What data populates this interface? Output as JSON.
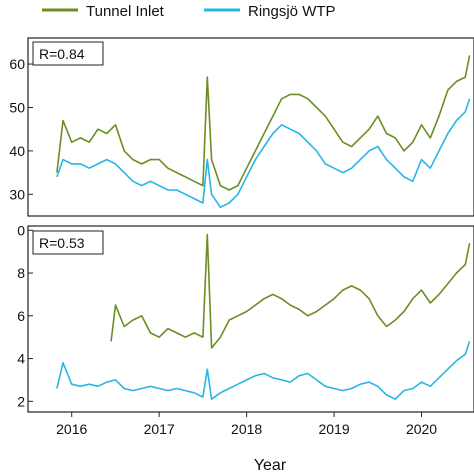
{
  "chart_data": [
    {
      "type": "line",
      "panel": "top",
      "annotation": "R=0.84",
      "xlabel": "Year",
      "ylabel": "",
      "y_ticks_visible": [
        "60",
        "50",
        "40",
        "30"
      ],
      "ylim": [
        25,
        66
      ],
      "xlim": [
        2015.5,
        2020.6
      ],
      "grid": false,
      "legend": "top, above plot",
      "series": [
        {
          "name": "Tunnel Inlet",
          "color": "#6b8e23",
          "x": [
            2015.83,
            2015.9,
            2016.0,
            2016.1,
            2016.2,
            2016.3,
            2016.4,
            2016.5,
            2016.6,
            2016.7,
            2016.8,
            2016.9,
            2017.0,
            2017.1,
            2017.2,
            2017.3,
            2017.4,
            2017.5,
            2017.55,
            2017.6,
            2017.7,
            2017.8,
            2017.9,
            2018.0,
            2018.1,
            2018.2,
            2018.3,
            2018.4,
            2018.5,
            2018.6,
            2018.7,
            2018.8,
            2018.9,
            2019.0,
            2019.1,
            2019.2,
            2019.3,
            2019.4,
            2019.5,
            2019.6,
            2019.7,
            2019.8,
            2019.9,
            2020.0,
            2020.1,
            2020.2,
            2020.3,
            2020.4,
            2020.5,
            2020.55
          ],
          "y": [
            35,
            47,
            42,
            43,
            42,
            45,
            44,
            46,
            40,
            38,
            37,
            38,
            38,
            36,
            35,
            34,
            33,
            32,
            57,
            38,
            32,
            31,
            32,
            36,
            40,
            44,
            48,
            52,
            53,
            53,
            52,
            50,
            48,
            45,
            42,
            41,
            43,
            45,
            48,
            44,
            43,
            40,
            42,
            46,
            43,
            48,
            54,
            56,
            57,
            62
          ]
        },
        {
          "name": "Ringsjö WTP",
          "color": "#29b6e6",
          "x": [
            2015.83,
            2015.9,
            2016.0,
            2016.1,
            2016.2,
            2016.3,
            2016.4,
            2016.5,
            2016.6,
            2016.7,
            2016.8,
            2016.9,
            2017.0,
            2017.1,
            2017.2,
            2017.3,
            2017.4,
            2017.5,
            2017.55,
            2017.6,
            2017.7,
            2017.8,
            2017.9,
            2018.0,
            2018.1,
            2018.2,
            2018.3,
            2018.4,
            2018.5,
            2018.6,
            2018.7,
            2018.8,
            2018.9,
            2019.0,
            2019.1,
            2019.2,
            2019.3,
            2019.4,
            2019.5,
            2019.6,
            2019.7,
            2019.8,
            2019.9,
            2020.0,
            2020.1,
            2020.2,
            2020.3,
            2020.4,
            2020.5,
            2020.55
          ],
          "y": [
            34,
            38,
            37,
            37,
            36,
            37,
            38,
            37,
            35,
            33,
            32,
            33,
            32,
            31,
            31,
            30,
            29,
            28,
            38,
            30,
            27,
            28,
            30,
            34,
            38,
            41,
            44,
            46,
            45,
            44,
            42,
            40,
            37,
            36,
            35,
            36,
            38,
            40,
            41,
            38,
            36,
            34,
            33,
            38,
            36,
            40,
            44,
            47,
            49,
            52
          ]
        }
      ]
    },
    {
      "type": "line",
      "panel": "bottom",
      "annotation": "R=0.53",
      "xlabel": "Year",
      "ylabel": "",
      "y_ticks_visible": [
        "0",
        "8",
        "6",
        "4",
        "2"
      ],
      "ylim": [
        1.5,
        10.2
      ],
      "xlim": [
        2015.5,
        2020.6
      ],
      "x_ticks": [
        "2016",
        "2017",
        "2018",
        "2019",
        "2020"
      ],
      "grid": false,
      "series": [
        {
          "name": "Tunnel Inlet",
          "color": "#6b8e23",
          "x": [
            2016.45,
            2016.5,
            2016.6,
            2016.7,
            2016.8,
            2016.9,
            2017.0,
            2017.1,
            2017.2,
            2017.3,
            2017.4,
            2017.5,
            2017.55,
            2017.6,
            2017.7,
            2017.8,
            2017.9,
            2018.0,
            2018.1,
            2018.2,
            2018.3,
            2018.4,
            2018.5,
            2018.6,
            2018.7,
            2018.8,
            2018.9,
            2019.0,
            2019.1,
            2019.2,
            2019.3,
            2019.4,
            2019.5,
            2019.6,
            2019.7,
            2019.8,
            2019.9,
            2020.0,
            2020.1,
            2020.2,
            2020.3,
            2020.4,
            2020.5,
            2020.55
          ],
          "y": [
            4.8,
            6.5,
            5.5,
            5.8,
            6.0,
            5.2,
            5.0,
            5.4,
            5.2,
            5.0,
            5.2,
            5.0,
            9.8,
            4.5,
            5.0,
            5.8,
            6.0,
            6.2,
            6.5,
            6.8,
            7.0,
            6.8,
            6.5,
            6.3,
            6.0,
            6.2,
            6.5,
            6.8,
            7.2,
            7.4,
            7.2,
            6.8,
            6.0,
            5.5,
            5.8,
            6.2,
            6.8,
            7.2,
            6.6,
            7.0,
            7.5,
            8.0,
            8.4,
            9.4
          ]
        },
        {
          "name": "Ringsjö WTP",
          "color": "#29b6e6",
          "x": [
            2015.83,
            2015.9,
            2016.0,
            2016.1,
            2016.2,
            2016.3,
            2016.4,
            2016.5,
            2016.6,
            2016.7,
            2016.8,
            2016.9,
            2017.0,
            2017.1,
            2017.2,
            2017.3,
            2017.4,
            2017.5,
            2017.55,
            2017.6,
            2017.7,
            2017.8,
            2017.9,
            2018.0,
            2018.1,
            2018.2,
            2018.3,
            2018.4,
            2018.5,
            2018.6,
            2018.7,
            2018.8,
            2018.9,
            2019.0,
            2019.1,
            2019.2,
            2019.3,
            2019.4,
            2019.5,
            2019.6,
            2019.7,
            2019.8,
            2019.9,
            2020.0,
            2020.1,
            2020.2,
            2020.3,
            2020.4,
            2020.5,
            2020.55
          ],
          "y": [
            2.6,
            3.8,
            2.8,
            2.7,
            2.8,
            2.7,
            2.9,
            3.0,
            2.6,
            2.5,
            2.6,
            2.7,
            2.6,
            2.5,
            2.6,
            2.5,
            2.4,
            2.2,
            3.5,
            2.1,
            2.4,
            2.6,
            2.8,
            3.0,
            3.2,
            3.3,
            3.1,
            3.0,
            2.9,
            3.2,
            3.3,
            3.0,
            2.7,
            2.6,
            2.5,
            2.6,
            2.8,
            2.9,
            2.7,
            2.3,
            2.1,
            2.5,
            2.6,
            2.9,
            2.7,
            3.1,
            3.5,
            3.9,
            4.2,
            4.8
          ]
        }
      ]
    }
  ]
}
